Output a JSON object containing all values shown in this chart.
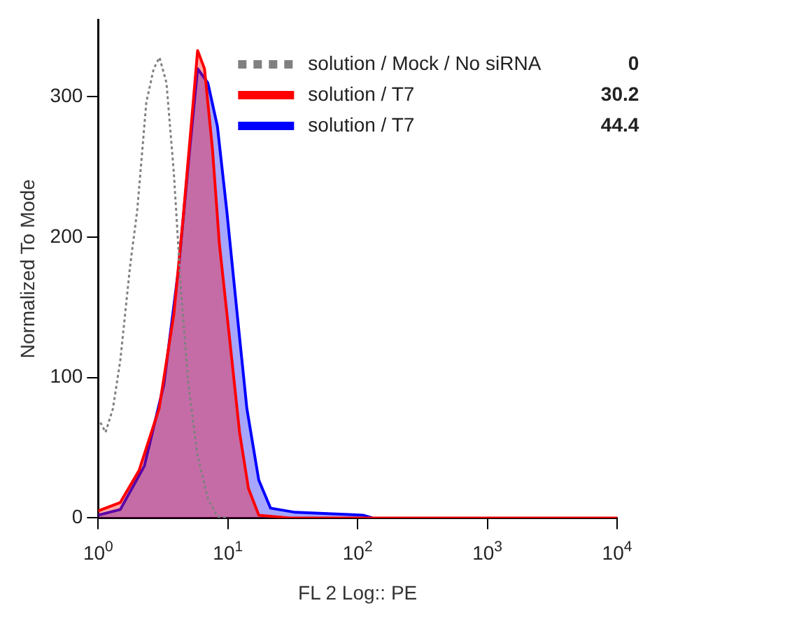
{
  "chart_data": {
    "type": "line",
    "xlabel": "FL 2 Log:: PE",
    "ylabel": "Normalized To Mode",
    "log": "x",
    "xlim": [
      1,
      10000
    ],
    "ylim": [
      0,
      355
    ],
    "xticks": [
      {
        "value": 1,
        "label": "10$^{0}$"
      },
      {
        "value": 10,
        "label": "10$^{1}$"
      },
      {
        "value": 100,
        "label": "10$^{2}$"
      },
      {
        "value": 1000,
        "label": "10$^{3}$"
      },
      {
        "value": 10000,
        "label": "10$^{4}$"
      }
    ],
    "yticks": [
      0,
      100,
      200,
      300
    ],
    "grid": false,
    "legend": "top right",
    "marker": "none",
    "series": [
      {
        "name": "solution / Mock / No siRNA",
        "color": "#808080",
        "type": "line",
        "line_style": "dotted",
        "x": [
          1.04,
          1.14,
          1.3,
          1.48,
          1.76,
          2.0,
          2.35,
          2.68,
          2.97,
          3.36,
          3.83,
          4.35,
          4.96,
          5.84,
          7.0,
          8.3,
          10
        ],
        "values": [
          68,
          61,
          78,
          112,
          179,
          219,
          296,
          320,
          328,
          310,
          246,
          162,
          95,
          44,
          14,
          1,
          0
        ]
      },
      {
        "name": "solution / T7",
        "color": "#ff0000",
        "type": "area",
        "x": [
          1,
          1.48,
          2.07,
          2.95,
          3.83,
          4.5,
          5.4,
          5.84,
          6.6,
          7.6,
          8.6,
          10.3,
          12.3,
          14.4,
          17.3,
          30,
          10000
        ],
        "values": [
          5,
          11,
          34,
          78,
          145,
          212,
          296,
          333,
          320,
          263,
          195,
          128,
          61,
          21,
          2,
          0,
          0
        ]
      },
      {
        "name": "solution / T7",
        "color": "#0000ff",
        "type": "area",
        "x": [
          1,
          1.48,
          2.27,
          3.21,
          4.17,
          4.96,
          5.84,
          7.0,
          8.3,
          9.8,
          11.8,
          14.0,
          17.3,
          21.3,
          33,
          110,
          130
        ],
        "values": [
          2,
          6,
          37,
          95,
          178,
          253,
          320,
          310,
          279,
          219,
          145,
          78,
          27,
          7,
          4,
          2,
          0
        ]
      }
    ],
    "annotations": [
      "0",
      "30.2",
      "44.4"
    ]
  }
}
